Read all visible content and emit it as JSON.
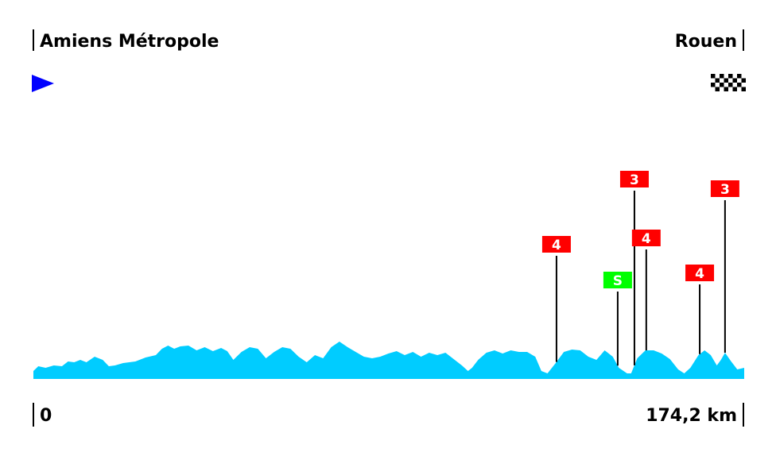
{
  "start_name": "Amiens Métropole",
  "finish_name": "Rouen",
  "distance_start": "0",
  "distance_end": "174,2 km",
  "colors": {
    "profile": "#00ccff",
    "start_flag": "#0000ff",
    "climb_badge": "#ff0000",
    "sprint_badge": "#00ff00"
  },
  "chart_data": {
    "type": "area",
    "xlabel": "",
    "ylabel": "",
    "xlim": [
      0,
      174.2
    ],
    "ylim": [
      0,
      240
    ],
    "grid": false,
    "profile": [
      [
        0,
        10
      ],
      [
        1.2,
        16
      ],
      [
        3,
        14
      ],
      [
        5,
        17
      ],
      [
        7,
        16
      ],
      [
        8.5,
        22
      ],
      [
        10,
        21
      ],
      [
        11.5,
        24
      ],
      [
        13,
        21
      ],
      [
        15,
        28
      ],
      [
        17,
        24
      ],
      [
        18.5,
        16
      ],
      [
        20,
        17
      ],
      [
        22,
        20
      ],
      [
        25,
        22
      ],
      [
        27.5,
        27
      ],
      [
        30,
        30
      ],
      [
        31.5,
        38
      ],
      [
        33,
        42
      ],
      [
        34.5,
        38
      ],
      [
        36,
        41
      ],
      [
        38,
        42
      ],
      [
        40,
        36
      ],
      [
        42,
        40
      ],
      [
        44,
        35
      ],
      [
        46,
        39
      ],
      [
        47.5,
        35
      ],
      [
        49,
        24
      ],
      [
        51,
        34
      ],
      [
        53,
        40
      ],
      [
        55,
        38
      ],
      [
        57,
        26
      ],
      [
        59,
        34
      ],
      [
        61,
        40
      ],
      [
        63,
        38
      ],
      [
        65,
        28
      ],
      [
        67,
        21
      ],
      [
        69,
        30
      ],
      [
        71,
        26
      ],
      [
        73,
        40
      ],
      [
        75,
        47
      ],
      [
        77,
        40
      ],
      [
        79,
        34
      ],
      [
        81,
        28
      ],
      [
        83,
        26
      ],
      [
        85,
        28
      ],
      [
        87,
        32
      ],
      [
        89,
        35
      ],
      [
        91,
        30
      ],
      [
        93,
        34
      ],
      [
        95,
        28
      ],
      [
        97,
        33
      ],
      [
        99,
        30
      ],
      [
        101,
        33
      ],
      [
        103,
        25
      ],
      [
        105,
        17
      ],
      [
        106.5,
        10
      ],
      [
        107.5,
        14
      ],
      [
        109,
        24
      ],
      [
        111,
        33
      ],
      [
        113,
        36
      ],
      [
        115,
        32
      ],
      [
        117,
        36
      ],
      [
        119,
        34
      ],
      [
        121,
        34
      ],
      [
        123,
        28
      ],
      [
        124.5,
        10
      ],
      [
        126,
        7
      ],
      [
        128,
        20
      ],
      [
        130,
        34
      ],
      [
        132,
        37
      ],
      [
        134,
        36
      ],
      [
        136,
        28
      ],
      [
        138,
        24
      ],
      [
        140,
        36
      ],
      [
        142,
        28
      ],
      [
        143.5,
        14
      ],
      [
        145.5,
        7
      ],
      [
        146.5,
        7
      ],
      [
        148,
        26
      ],
      [
        150,
        36
      ],
      [
        152,
        36
      ],
      [
        154,
        32
      ],
      [
        156,
        25
      ],
      [
        158,
        12
      ],
      [
        159.5,
        7
      ],
      [
        161,
        14
      ],
      [
        163,
        30
      ],
      [
        164.5,
        36
      ],
      [
        166,
        30
      ],
      [
        167.5,
        17
      ],
      [
        168.5,
        24
      ],
      [
        169.5,
        33
      ],
      [
        171,
        22
      ],
      [
        172.5,
        12
      ],
      [
        174.2,
        14
      ]
    ],
    "markers": [
      {
        "km": 128.2,
        "label": "4",
        "kind": "climb",
        "pole_top": 155
      },
      {
        "km": 143.2,
        "label": "S",
        "kind": "sprint",
        "pole_top": 110
      },
      {
        "km": 147.3,
        "label": "3",
        "kind": "climb",
        "pole_top": 237
      },
      {
        "km": 150.2,
        "label": "4",
        "kind": "climb",
        "pole_top": 163
      },
      {
        "km": 163.3,
        "label": "4",
        "kind": "climb",
        "pole_top": 119
      },
      {
        "km": 169.5,
        "label": "3",
        "kind": "climb",
        "pole_top": 225
      }
    ]
  }
}
